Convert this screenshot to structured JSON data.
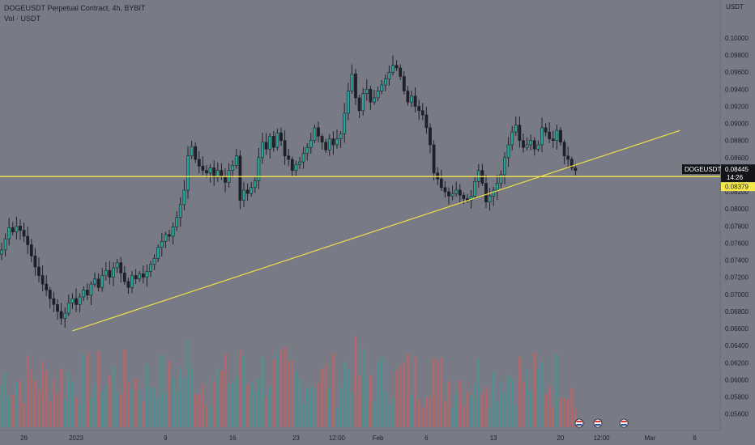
{
  "chart_data": {
    "type": "candlestick",
    "symbol_title": "DOGEUSDT Perpetual Contract, 4h, BYBIT",
    "volume_title": "Vol · USDT",
    "currency": "USDT",
    "price_axis": {
      "ylim": [
        0.0553,
        0.1018
      ],
      "ticks": [
        "0.10000",
        "0.09800",
        "0.09600",
        "0.09400",
        "0.09200",
        "0.09000",
        "0.08800",
        "0.08600",
        "0.08400",
        "0.08200",
        "0.08000",
        "0.07800",
        "0.07600",
        "0.07400",
        "0.07200",
        "0.07000",
        "0.06800",
        "0.06600",
        "0.06400",
        "0.06200",
        "0.06000",
        "0.05800",
        "0.05600"
      ]
    },
    "time_axis": {
      "labels": [
        {
          "text": "26",
          "bar": 6
        },
        {
          "text": "2023",
          "bar": 20
        },
        {
          "text": "9",
          "bar": 44
        },
        {
          "text": "16",
          "bar": 62
        },
        {
          "text": "23",
          "bar": 79
        },
        {
          "text": "12:00",
          "bar": 90
        },
        {
          "text": "Feb",
          "bar": 101
        },
        {
          "text": "6",
          "bar": 114
        },
        {
          "text": "13",
          "bar": 132
        },
        {
          "text": "20",
          "bar": 150
        },
        {
          "text": "12:00",
          "bar": 161
        },
        {
          "text": "Mar",
          "bar": 174
        },
        {
          "text": "6",
          "bar": 186
        }
      ]
    },
    "candles": {
      "closes": [
        0.0752,
        0.0765,
        0.0778,
        0.0773,
        0.078,
        0.0775,
        0.0768,
        0.0758,
        0.0745,
        0.0732,
        0.0722,
        0.0712,
        0.0705,
        0.0695,
        0.0688,
        0.068,
        0.0672,
        0.0678,
        0.069,
        0.0695,
        0.0688,
        0.0697,
        0.0705,
        0.0699,
        0.0712,
        0.0718,
        0.0708,
        0.0722,
        0.0728,
        0.072,
        0.0731,
        0.0737,
        0.0725,
        0.0715,
        0.0708,
        0.0722,
        0.0718,
        0.0724,
        0.072,
        0.0727,
        0.0735,
        0.0742,
        0.0755,
        0.0762,
        0.077,
        0.0768,
        0.0779,
        0.079,
        0.0805,
        0.0822,
        0.0862,
        0.0873,
        0.0858,
        0.085,
        0.0845,
        0.0842,
        0.0848,
        0.0837,
        0.0845,
        0.0838,
        0.0831,
        0.0845,
        0.0851,
        0.0862,
        0.081,
        0.0822,
        0.0818,
        0.0825,
        0.0833,
        0.086,
        0.0878,
        0.087,
        0.0885,
        0.0872,
        0.0889,
        0.088,
        0.0862,
        0.0858,
        0.0845,
        0.0852,
        0.0855,
        0.0865,
        0.0872,
        0.088,
        0.0895,
        0.0885,
        0.0878,
        0.0869,
        0.0882,
        0.0875,
        0.0882,
        0.0888,
        0.0912,
        0.0938,
        0.0958,
        0.093,
        0.0915,
        0.0935,
        0.094,
        0.0925,
        0.093,
        0.0938,
        0.0945,
        0.0952,
        0.096,
        0.0968,
        0.0965,
        0.0955,
        0.0938,
        0.0925,
        0.0932,
        0.092,
        0.0915,
        0.091,
        0.0895,
        0.0875,
        0.0842,
        0.0835,
        0.0825,
        0.082,
        0.0815,
        0.0818,
        0.0822,
        0.0816,
        0.0812,
        0.081,
        0.0815,
        0.0832,
        0.0845,
        0.083,
        0.0808,
        0.0815,
        0.0822,
        0.083,
        0.084,
        0.086,
        0.0875,
        0.089,
        0.0898,
        0.088,
        0.0872,
        0.0875,
        0.088,
        0.087,
        0.0875,
        0.0895,
        0.089,
        0.0882,
        0.088,
        0.0892,
        0.0878,
        0.0862,
        0.0858,
        0.0848,
        0.0845
      ],
      "highs_note": "",
      "last_price": "0.08445",
      "last_price_label": "DOGEUSDT.P",
      "countdown": "14:26",
      "horizontal_line_price": "0.08379"
    },
    "trendline": {
      "from": {
        "bar": 19,
        "price": 0.06572
      },
      "to": {
        "bar": 182,
        "price": 0.08917
      }
    },
    "volume_note": "",
    "colors": {
      "background": "#787b86",
      "up": "#26a69a",
      "down": "#ef5350",
      "wick": "#1e2028",
      "horizontal_line": "#f5e84a",
      "trendline": "#f0e04a",
      "price_tag": "#121418",
      "yellow_tag": "#f5e84a"
    }
  }
}
